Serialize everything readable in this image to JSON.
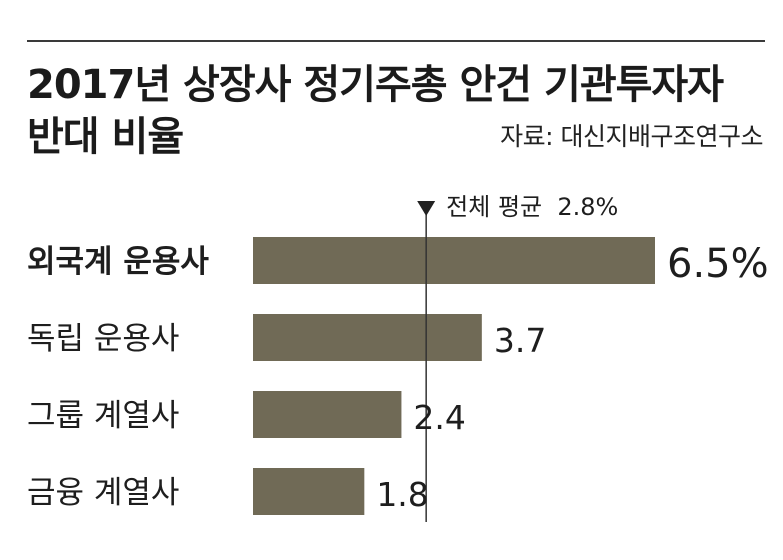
{
  "title_line1": "2017년 상장사 정기주총 안건 기관투자자",
  "title_line2": "반대 비율",
  "source": "자료: 대신지배구조연구소",
  "average_label": "전체 평균  2.8%",
  "colors": {
    "bar": "#706a56",
    "text": "#1e1e1e",
    "line": "#333333"
  },
  "chart_data": {
    "type": "bar",
    "orientation": "horizontal",
    "title": "2017년 상장사 정기주총 안건 기관투자자 반대 비율",
    "categories": [
      "외국계 운용사",
      "독립 운용사",
      "그룹 계열사",
      "금융 계열사"
    ],
    "values": [
      6.5,
      3.7,
      2.4,
      1.8
    ],
    "value_labels": [
      "6.5%",
      "3.7",
      "2.4",
      "1.8"
    ],
    "unit": "%",
    "average": 2.8,
    "xlabel": "",
    "ylabel": "",
    "xlim": [
      0,
      6.5
    ],
    "grid": false,
    "legend": "none"
  }
}
